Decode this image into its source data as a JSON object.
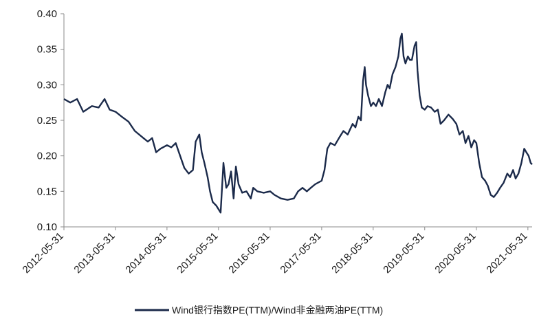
{
  "chart_data": {
    "type": "line",
    "title": "",
    "xlabel": "",
    "ylabel": "",
    "ylim": [
      0.1,
      0.4
    ],
    "yticks": [
      "0.10",
      "0.15",
      "0.20",
      "0.25",
      "0.30",
      "0.35",
      "0.40"
    ],
    "xlim": [
      "2012-05-31",
      "2021-06-30"
    ],
    "xticks": [
      "2012-05-31",
      "2013-05-31",
      "2014-05-31",
      "2015-05-31",
      "2016-05-31",
      "2017-05-31",
      "2018-05-31",
      "2019-05-31",
      "2020-05-31",
      "2021-05-31"
    ],
    "grid": false,
    "legend_position": "bottom",
    "series": [
      {
        "name": "Wind银行指数PE(TTM)/Wind非金融两油PE(TTM)",
        "color": "#1b2a4a",
        "points": [
          [
            "2012-05-31",
            0.28
          ],
          [
            "2012-07-15",
            0.275
          ],
          [
            "2012-09-01",
            0.28
          ],
          [
            "2012-10-15",
            0.262
          ],
          [
            "2012-12-15",
            0.27
          ],
          [
            "2013-02-01",
            0.268
          ],
          [
            "2013-03-15",
            0.28
          ],
          [
            "2013-04-20",
            0.265
          ],
          [
            "2013-06-01",
            0.262
          ],
          [
            "2013-07-15",
            0.255
          ],
          [
            "2013-09-01",
            0.248
          ],
          [
            "2013-10-15",
            0.235
          ],
          [
            "2013-12-15",
            0.225
          ],
          [
            "2014-01-15",
            0.22
          ],
          [
            "2014-02-15",
            0.225
          ],
          [
            "2014-03-15",
            0.205
          ],
          [
            "2014-04-15",
            0.21
          ],
          [
            "2014-05-31",
            0.215
          ],
          [
            "2014-07-01",
            0.212
          ],
          [
            "2014-08-01",
            0.218
          ],
          [
            "2014-09-01",
            0.2
          ],
          [
            "2014-10-01",
            0.183
          ],
          [
            "2014-11-01",
            0.175
          ],
          [
            "2014-12-01",
            0.18
          ],
          [
            "2014-12-20",
            0.22
          ],
          [
            "2015-01-15",
            0.23
          ],
          [
            "2015-02-01",
            0.205
          ],
          [
            "2015-02-20",
            0.19
          ],
          [
            "2015-03-15",
            0.17
          ],
          [
            "2015-04-01",
            0.15
          ],
          [
            "2015-04-20",
            0.135
          ],
          [
            "2015-05-15",
            0.13
          ],
          [
            "2015-05-31",
            0.125
          ],
          [
            "2015-06-15",
            0.12
          ],
          [
            "2015-07-05",
            0.19
          ],
          [
            "2015-07-25",
            0.155
          ],
          [
            "2015-08-10",
            0.16
          ],
          [
            "2015-08-28",
            0.178
          ],
          [
            "2015-09-15",
            0.14
          ],
          [
            "2015-10-01",
            0.185
          ],
          [
            "2015-10-20",
            0.16
          ],
          [
            "2015-11-15",
            0.148
          ],
          [
            "2015-12-15",
            0.15
          ],
          [
            "2016-01-15",
            0.14
          ],
          [
            "2016-02-01",
            0.155
          ],
          [
            "2016-03-01",
            0.15
          ],
          [
            "2016-04-15",
            0.148
          ],
          [
            "2016-05-31",
            0.15
          ],
          [
            "2016-07-01",
            0.145
          ],
          [
            "2016-08-15",
            0.14
          ],
          [
            "2016-10-01",
            0.138
          ],
          [
            "2016-11-15",
            0.14
          ],
          [
            "2016-12-15",
            0.15
          ],
          [
            "2017-01-15",
            0.155
          ],
          [
            "2017-02-15",
            0.15
          ],
          [
            "2017-03-15",
            0.155
          ],
          [
            "2017-04-15",
            0.16
          ],
          [
            "2017-05-31",
            0.165
          ],
          [
            "2017-06-20",
            0.18
          ],
          [
            "2017-07-10",
            0.21
          ],
          [
            "2017-08-01",
            0.218
          ],
          [
            "2017-09-01",
            0.215
          ],
          [
            "2017-10-01",
            0.225
          ],
          [
            "2017-11-01",
            0.235
          ],
          [
            "2017-12-01",
            0.23
          ],
          [
            "2018-01-05",
            0.245
          ],
          [
            "2018-01-25",
            0.24
          ],
          [
            "2018-02-15",
            0.255
          ],
          [
            "2018-03-05",
            0.25
          ],
          [
            "2018-03-20",
            0.305
          ],
          [
            "2018-04-01",
            0.325
          ],
          [
            "2018-04-10",
            0.3
          ],
          [
            "2018-04-25",
            0.285
          ],
          [
            "2018-05-15",
            0.27
          ],
          [
            "2018-06-01",
            0.275
          ],
          [
            "2018-06-20",
            0.27
          ],
          [
            "2018-07-10",
            0.28
          ],
          [
            "2018-08-01",
            0.27
          ],
          [
            "2018-08-25",
            0.29
          ],
          [
            "2018-09-10",
            0.3
          ],
          [
            "2018-09-25",
            0.295
          ],
          [
            "2018-10-15",
            0.315
          ],
          [
            "2018-11-05",
            0.325
          ],
          [
            "2018-11-25",
            0.34
          ],
          [
            "2018-12-10",
            0.365
          ],
          [
            "2018-12-20",
            0.372
          ],
          [
            "2019-01-01",
            0.34
          ],
          [
            "2019-01-15",
            0.33
          ],
          [
            "2019-02-01",
            0.34
          ],
          [
            "2019-02-15",
            0.335
          ],
          [
            "2019-03-01",
            0.335
          ],
          [
            "2019-03-20",
            0.355
          ],
          [
            "2019-04-01",
            0.36
          ],
          [
            "2019-04-10",
            0.32
          ],
          [
            "2019-04-25",
            0.285
          ],
          [
            "2019-05-10",
            0.268
          ],
          [
            "2019-05-31",
            0.265
          ],
          [
            "2019-06-20",
            0.27
          ],
          [
            "2019-07-15",
            0.268
          ],
          [
            "2019-08-10",
            0.262
          ],
          [
            "2019-09-01",
            0.265
          ],
          [
            "2019-09-20",
            0.245
          ],
          [
            "2019-10-15",
            0.25
          ],
          [
            "2019-11-15",
            0.258
          ],
          [
            "2019-12-15",
            0.252
          ],
          [
            "2020-01-10",
            0.245
          ],
          [
            "2020-02-01",
            0.23
          ],
          [
            "2020-02-25",
            0.235
          ],
          [
            "2020-03-15",
            0.218
          ],
          [
            "2020-04-05",
            0.228
          ],
          [
            "2020-04-25",
            0.212
          ],
          [
            "2020-05-15",
            0.222
          ],
          [
            "2020-05-31",
            0.218
          ],
          [
            "2020-06-20",
            0.19
          ],
          [
            "2020-07-10",
            0.17
          ],
          [
            "2020-08-01",
            0.165
          ],
          [
            "2020-08-20",
            0.158
          ],
          [
            "2020-09-10",
            0.145
          ],
          [
            "2020-10-01",
            0.142
          ],
          [
            "2020-10-25",
            0.148
          ],
          [
            "2020-11-15",
            0.155
          ],
          [
            "2020-12-10",
            0.162
          ],
          [
            "2021-01-05",
            0.175
          ],
          [
            "2021-01-25",
            0.17
          ],
          [
            "2021-02-15",
            0.18
          ],
          [
            "2021-03-05",
            0.168
          ],
          [
            "2021-03-25",
            0.175
          ],
          [
            "2021-04-15",
            0.19
          ],
          [
            "2021-05-05",
            0.21
          ],
          [
            "2021-05-20",
            0.205
          ],
          [
            "2021-06-05",
            0.2
          ],
          [
            "2021-06-20",
            0.19
          ],
          [
            "2021-06-30",
            0.188
          ]
        ]
      }
    ]
  }
}
